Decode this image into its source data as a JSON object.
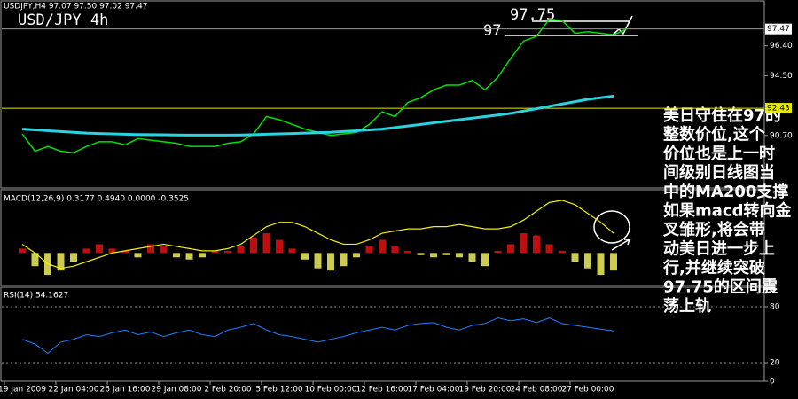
{
  "chart_data": [
    {
      "type": "line",
      "title": "USDJPY,H4  97.07 97.50 97.02 97.47",
      "subtitle": "USD/JPY 4h",
      "categories": [
        "19 Jan 2009",
        null,
        null,
        null,
        "22 Jan 04:00",
        null,
        null,
        null,
        "26 Jan 16:00",
        null,
        null,
        null,
        "29 Jan 08:00",
        null,
        null,
        null,
        "2 Feb 20:00",
        null,
        null,
        null,
        "5 Feb 12:00",
        null,
        null,
        null,
        "10 Feb 00:00",
        null,
        null,
        null,
        "12 Feb 16:00",
        null,
        null,
        null,
        "17 Feb 04:00",
        null,
        null,
        null,
        "19 Feb 20:00",
        null,
        null,
        null,
        "24 Feb 08:00",
        null,
        null,
        null,
        "27 Feb 00:00",
        null,
        null,
        null
      ],
      "series": [
        {
          "color": "#00e000",
          "values": [
            90.8,
            89.7,
            90.0,
            89.7,
            89.6,
            90.0,
            90.3,
            90.3,
            90.1,
            90.5,
            90.4,
            90.3,
            90.2,
            90.0,
            90.0,
            90.0,
            90.2,
            90.3,
            90.8,
            91.9,
            91.7,
            91.4,
            91.1,
            90.9,
            90.7,
            90.8,
            90.9,
            91.4,
            92.2,
            91.9,
            92.8,
            93.1,
            93.6,
            93.9,
            93.9,
            94.2,
            93.6,
            94.4,
            95.6,
            96.7,
            97.0,
            98.1,
            98.0,
            97.2,
            97.3,
            97.2,
            97.1,
            97.47
          ]
        },
        {
          "color": "#2bd2e0",
          "values": [
            91.1,
            91.05,
            91.0,
            90.95,
            90.9,
            90.85,
            90.82,
            90.8,
            90.78,
            90.76,
            90.75,
            90.74,
            90.73,
            90.72,
            90.72,
            90.72,
            90.72,
            90.73,
            90.75,
            90.78,
            90.8,
            90.82,
            90.85,
            90.88,
            90.9,
            90.95,
            91.0,
            91.05,
            91.1,
            91.2,
            91.3,
            91.4,
            91.5,
            91.6,
            91.7,
            91.8,
            91.9,
            92.0,
            92.1,
            92.25,
            92.4,
            92.55,
            92.7,
            92.85,
            93.0,
            93.1,
            93.2,
            null
          ]
        }
      ],
      "ylim": [
        87.36,
        99.2
      ],
      "yticks": [
        {
          "value": 96.4,
          "label": "96.40"
        },
        {
          "value": 94.5,
          "label": "94.50"
        },
        {
          "value": 90.7,
          "label": "90.70"
        }
      ],
      "price_marker": {
        "value": 97.47,
        "label": "97.47"
      },
      "level": {
        "value": 92.43,
        "label": "92.43"
      },
      "annotations": [
        "97.75",
        "97"
      ],
      "note_lines": [
        "美日守住在97的",
        "整数价位,这个",
        "价位也是上一时",
        "间级别日线图当",
        "中的MA200支撑",
        "如果macd转向金",
        "叉雏形,将会带",
        "动美日进一步上",
        "行,并继续突破",
        "97.75的区间震",
        "荡上轨"
      ]
    },
    {
      "type": "macd",
      "title": "MACD(12,26,9) 0.3177 0.4940 0.0000 -0.3525",
      "values": [
        0.1,
        -0.3,
        -0.5,
        -0.4,
        -0.2,
        0.1,
        0.2,
        0.1,
        0.05,
        -0.1,
        0.2,
        0.15,
        -0.1,
        -0.15,
        -0.1,
        0.05,
        0.05,
        0.15,
        0.35,
        0.45,
        0.3,
        0.1,
        -0.15,
        -0.35,
        -0.4,
        -0.3,
        -0.1,
        0.15,
        0.3,
        0.15,
        0.05,
        -0.05,
        -0.1,
        -0.05,
        -0.1,
        -0.2,
        -0.3,
        0.05,
        0.2,
        0.45,
        0.4,
        0.2,
        0.05,
        -0.2,
        -0.35,
        -0.5,
        -0.4,
        null
      ],
      "signal": [
        0.2,
        0.0,
        -0.25,
        -0.35,
        -0.3,
        -0.2,
        -0.1,
        0.0,
        0.05,
        0.1,
        0.15,
        0.2,
        0.15,
        0.1,
        0.05,
        0.05,
        0.1,
        0.2,
        0.4,
        0.6,
        0.7,
        0.7,
        0.6,
        0.45,
        0.3,
        0.2,
        0.2,
        0.3,
        0.45,
        0.5,
        0.55,
        0.55,
        0.6,
        0.6,
        0.65,
        0.6,
        0.55,
        0.55,
        0.6,
        0.75,
        0.95,
        1.15,
        1.2,
        1.1,
        0.9,
        0.7,
        0.45,
        null
      ],
      "colors": {
        "up": "#e01010",
        "down": "#f0f060",
        "signal": "#f0f000"
      },
      "ylim": [
        -0.74,
        1.42
      ]
    },
    {
      "type": "line",
      "title": "RSI(14) 54.1627",
      "series": [
        {
          "color": "#1e7fff",
          "values": [
            45,
            40,
            30,
            42,
            45,
            50,
            48,
            52,
            55,
            50,
            53,
            48,
            52,
            55,
            50,
            48,
            55,
            58,
            62,
            55,
            50,
            48,
            45,
            42,
            45,
            48,
            52,
            55,
            58,
            55,
            60,
            62,
            63,
            58,
            55,
            60,
            62,
            68,
            65,
            67,
            63,
            68,
            62,
            60,
            58,
            56,
            54,
            null
          ]
        }
      ],
      "ylim": [
        0,
        100
      ],
      "yticks": [
        80,
        20,
        0
      ]
    }
  ]
}
